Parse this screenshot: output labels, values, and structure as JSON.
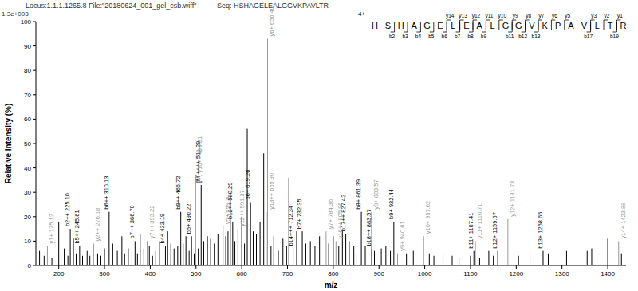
{
  "chart_data": {
    "type": "stem",
    "title": "Locus:1.1.1.1265.8   File:\"20180624_001_gel_csb.wiff\"",
    "subtitle": "Seq: HSHAGELEALGGVKPAVLTR",
    "annotations": [
      "1.3e+003"
    ],
    "x_label": "m/z",
    "y_label": "Relative Intensity (%)",
    "xlim": [
      150,
      1440
    ],
    "ylim": [
      0,
      100
    ],
    "xticks": [
      200,
      300,
      400,
      500,
      600,
      700,
      800,
      900,
      1000,
      1100,
      1200,
      1300,
      1400
    ],
    "yticks": [
      0,
      10,
      20,
      30,
      40,
      50,
      60,
      70,
      80,
      90,
      100
    ],
    "grid": false,
    "sequence": {
      "charge": "4+",
      "residues": [
        "H",
        "S",
        "H",
        "A",
        "G",
        "E",
        "L",
        "E",
        "A",
        "L",
        "G",
        "G",
        "V",
        "K",
        "P",
        "A",
        "V",
        "L",
        "T",
        "R"
      ],
      "b_ions": [
        {
          "label": "b2",
          "index": 2
        },
        {
          "label": "b3",
          "index": 3
        },
        {
          "label": "b4",
          "index": 4
        },
        {
          "label": "b5",
          "index": 5
        },
        {
          "label": "b6",
          "index": 6
        },
        {
          "label": "b7",
          "index": 7
        },
        {
          "label": "b8",
          "index": 8
        },
        {
          "label": "b9",
          "index": 9
        },
        {
          "label": "b11",
          "index": 11
        },
        {
          "label": "b12",
          "index": 12
        },
        {
          "label": "b13",
          "index": 13
        },
        {
          "label": "b17",
          "index": 17
        },
        {
          "label": "b19",
          "index": 19
        }
      ],
      "y_ions": [
        {
          "label": "y14",
          "index": 14
        },
        {
          "label": "y13",
          "index": 13
        },
        {
          "label": "y12",
          "index": 12
        },
        {
          "label": "y11",
          "index": 11
        },
        {
          "label": "y10",
          "index": 10
        },
        {
          "label": "y9",
          "index": 9
        },
        {
          "label": "y8",
          "index": 8
        },
        {
          "label": "y7",
          "index": 7
        },
        {
          "label": "y6",
          "index": 6
        },
        {
          "label": "y5",
          "index": 5
        },
        {
          "label": "y3",
          "index": 3
        },
        {
          "label": "y2",
          "index": 2
        },
        {
          "label": "y1",
          "index": 1
        }
      ]
    },
    "series": [
      {
        "color": "#000000",
        "marker": "b",
        "x": [
          225.1,
          245.61,
          310.13,
          366.7,
          433.19,
          466.72,
          490.22,
          511.29,
          580.29,
          619.26,
          712.34,
          732.35,
          827.42,
          861.39,
          883.57,
          932.44,
          1107.41,
          1159.57,
          1258.65
        ],
        "values": [
          15,
          8,
          22,
          10,
          8,
          22,
          12,
          33,
          18,
          26,
          7,
          14,
          13,
          22,
          7,
          18,
          6,
          6,
          6
        ],
        "labels": [
          "b2++ 225.10",
          "b5++ 245.61",
          "b6++ 310.13",
          "b7++ 366.70",
          "b4+ 433.19",
          "b9++ 466.72",
          "b5+ 490.22",
          "[M]++++ 511.29",
          "b12++ 580.29",
          "b6+ 619.26",
          "b14+++ 712.34",
          "b7+ 732.35",
          "b17++ 827.42",
          "b8+ 861.39",
          "b18++ 883.57",
          "b9+ 932.44",
          "b11+ 1107.41",
          "b12+ 1159.57",
          "b13+ 1258.65"
        ]
      },
      {
        "color": "#999999",
        "marker": "y",
        "x": [
          175.12,
          276.18,
          393.22,
          499.31,
          559.3,
          591.37,
          656.4,
          655.9,
          784.36,
          805.96,
          883.57,
          940.61,
          997.62,
          1110.71,
          1181.73,
          1423.88
        ],
        "values": [
          8,
          9,
          10,
          37,
          16,
          15,
          93,
          22,
          14,
          10,
          22,
          5,
          12,
          10,
          19,
          10
        ],
        "labels": [
          "y1+ 175.12",
          "y2++ 276.18",
          "y7++ 393.22",
          "y10++ 499.31",
          "y5+ 559.30",
          "y12++ 591.37",
          "y6+ 656.40",
          "y13++ 655.90",
          "y7+ 784.36",
          "y16++ 805.96",
          "y8+ 883.57",
          "y9+ 940.61",
          "y10+ 997.62",
          "y11+ 1110.71",
          "y12+ 1181.73",
          "y14+ 1423.88"
        ]
      },
      {
        "color": "#000000",
        "x": [
          158,
          168,
          185,
          200,
          205,
          212,
          220,
          232,
          238,
          252,
          262,
          268,
          285,
          292,
          300,
          318,
          328,
          338,
          344,
          352,
          360,
          372,
          378,
          386,
          398,
          405,
          412,
          420,
          438,
          445,
          452,
          460,
          472,
          478,
          485,
          496,
          505,
          517,
          525,
          532,
          540,
          548,
          565,
          570,
          575,
          585,
          600,
          606,
          612,
          625,
          632,
          640,
          648,
          664,
          670,
          680,
          690,
          698,
          703,
          720,
          740,
          750,
          760,
          770,
          790,
          800,
          812,
          820,
          835,
          845,
          850,
          870,
          890,
          905,
          915,
          925,
          960,
          975,
          1010,
          1020,
          1040,
          1060,
          1075,
          1100,
          1120,
          1140,
          1150,
          1205,
          1230,
          1270,
          1310,
          1355,
          1365,
          1400,
          1430
        ],
        "values": [
          6,
          4,
          3,
          18,
          5,
          7,
          4,
          11,
          5,
          4,
          6,
          4,
          5,
          4,
          7,
          9,
          6,
          12,
          5,
          7,
          6,
          5,
          13,
          7,
          8,
          4,
          6,
          10,
          14,
          9,
          7,
          8,
          9,
          12,
          6,
          5,
          7,
          10,
          12,
          11,
          9,
          13,
          12,
          14,
          30,
          10,
          20,
          9,
          56,
          14,
          13,
          18,
          46,
          8,
          12,
          6,
          11,
          8,
          36,
          14,
          9,
          10,
          8,
          12,
          9,
          12,
          8,
          14,
          10,
          8,
          5,
          8,
          6,
          7,
          8,
          6,
          5,
          6,
          5,
          4,
          5,
          4,
          3,
          4,
          3,
          6,
          4,
          4,
          6,
          5,
          6,
          6,
          7,
          11,
          5
        ]
      }
    ]
  }
}
